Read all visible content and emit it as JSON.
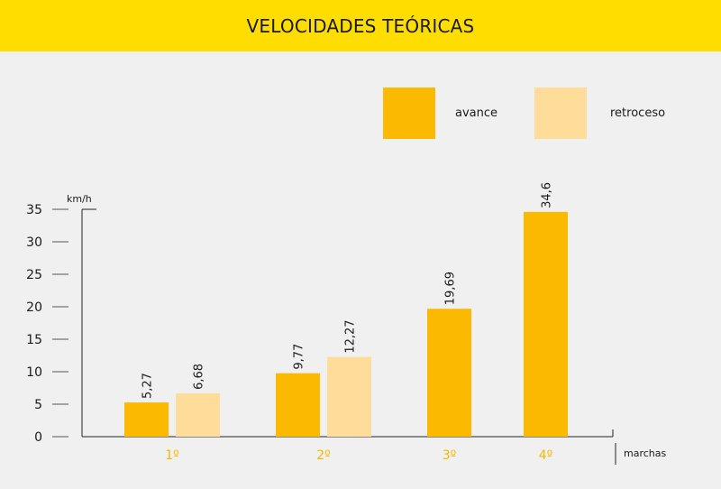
{
  "chart_data": {
    "type": "bar",
    "title": "VELOCIDADES TEÓRICAS",
    "xlabel": "marchas",
    "ylabel": "km/h",
    "ylim": [
      0,
      35
    ],
    "yticks": [
      0,
      5,
      10,
      15,
      20,
      25,
      30,
      35
    ],
    "categories": [
      "1º",
      "2º",
      "3º",
      "4º"
    ],
    "series": [
      {
        "name": "avance",
        "color": "#fbb900",
        "values": [
          5.27,
          9.77,
          19.69,
          34.6
        ],
        "labels": [
          "5,27",
          "9,77",
          "19,69",
          "34,6"
        ]
      },
      {
        "name": "retroceso",
        "color": "#fedd9b",
        "values": [
          6.68,
          12.27,
          null,
          null
        ],
        "labels": [
          "6,68",
          "12,27",
          "",
          ""
        ]
      }
    ],
    "category_label_color": "#f5b800",
    "title_bar_color": "#ffdd00",
    "legend_position": "top-right",
    "grid": false
  }
}
